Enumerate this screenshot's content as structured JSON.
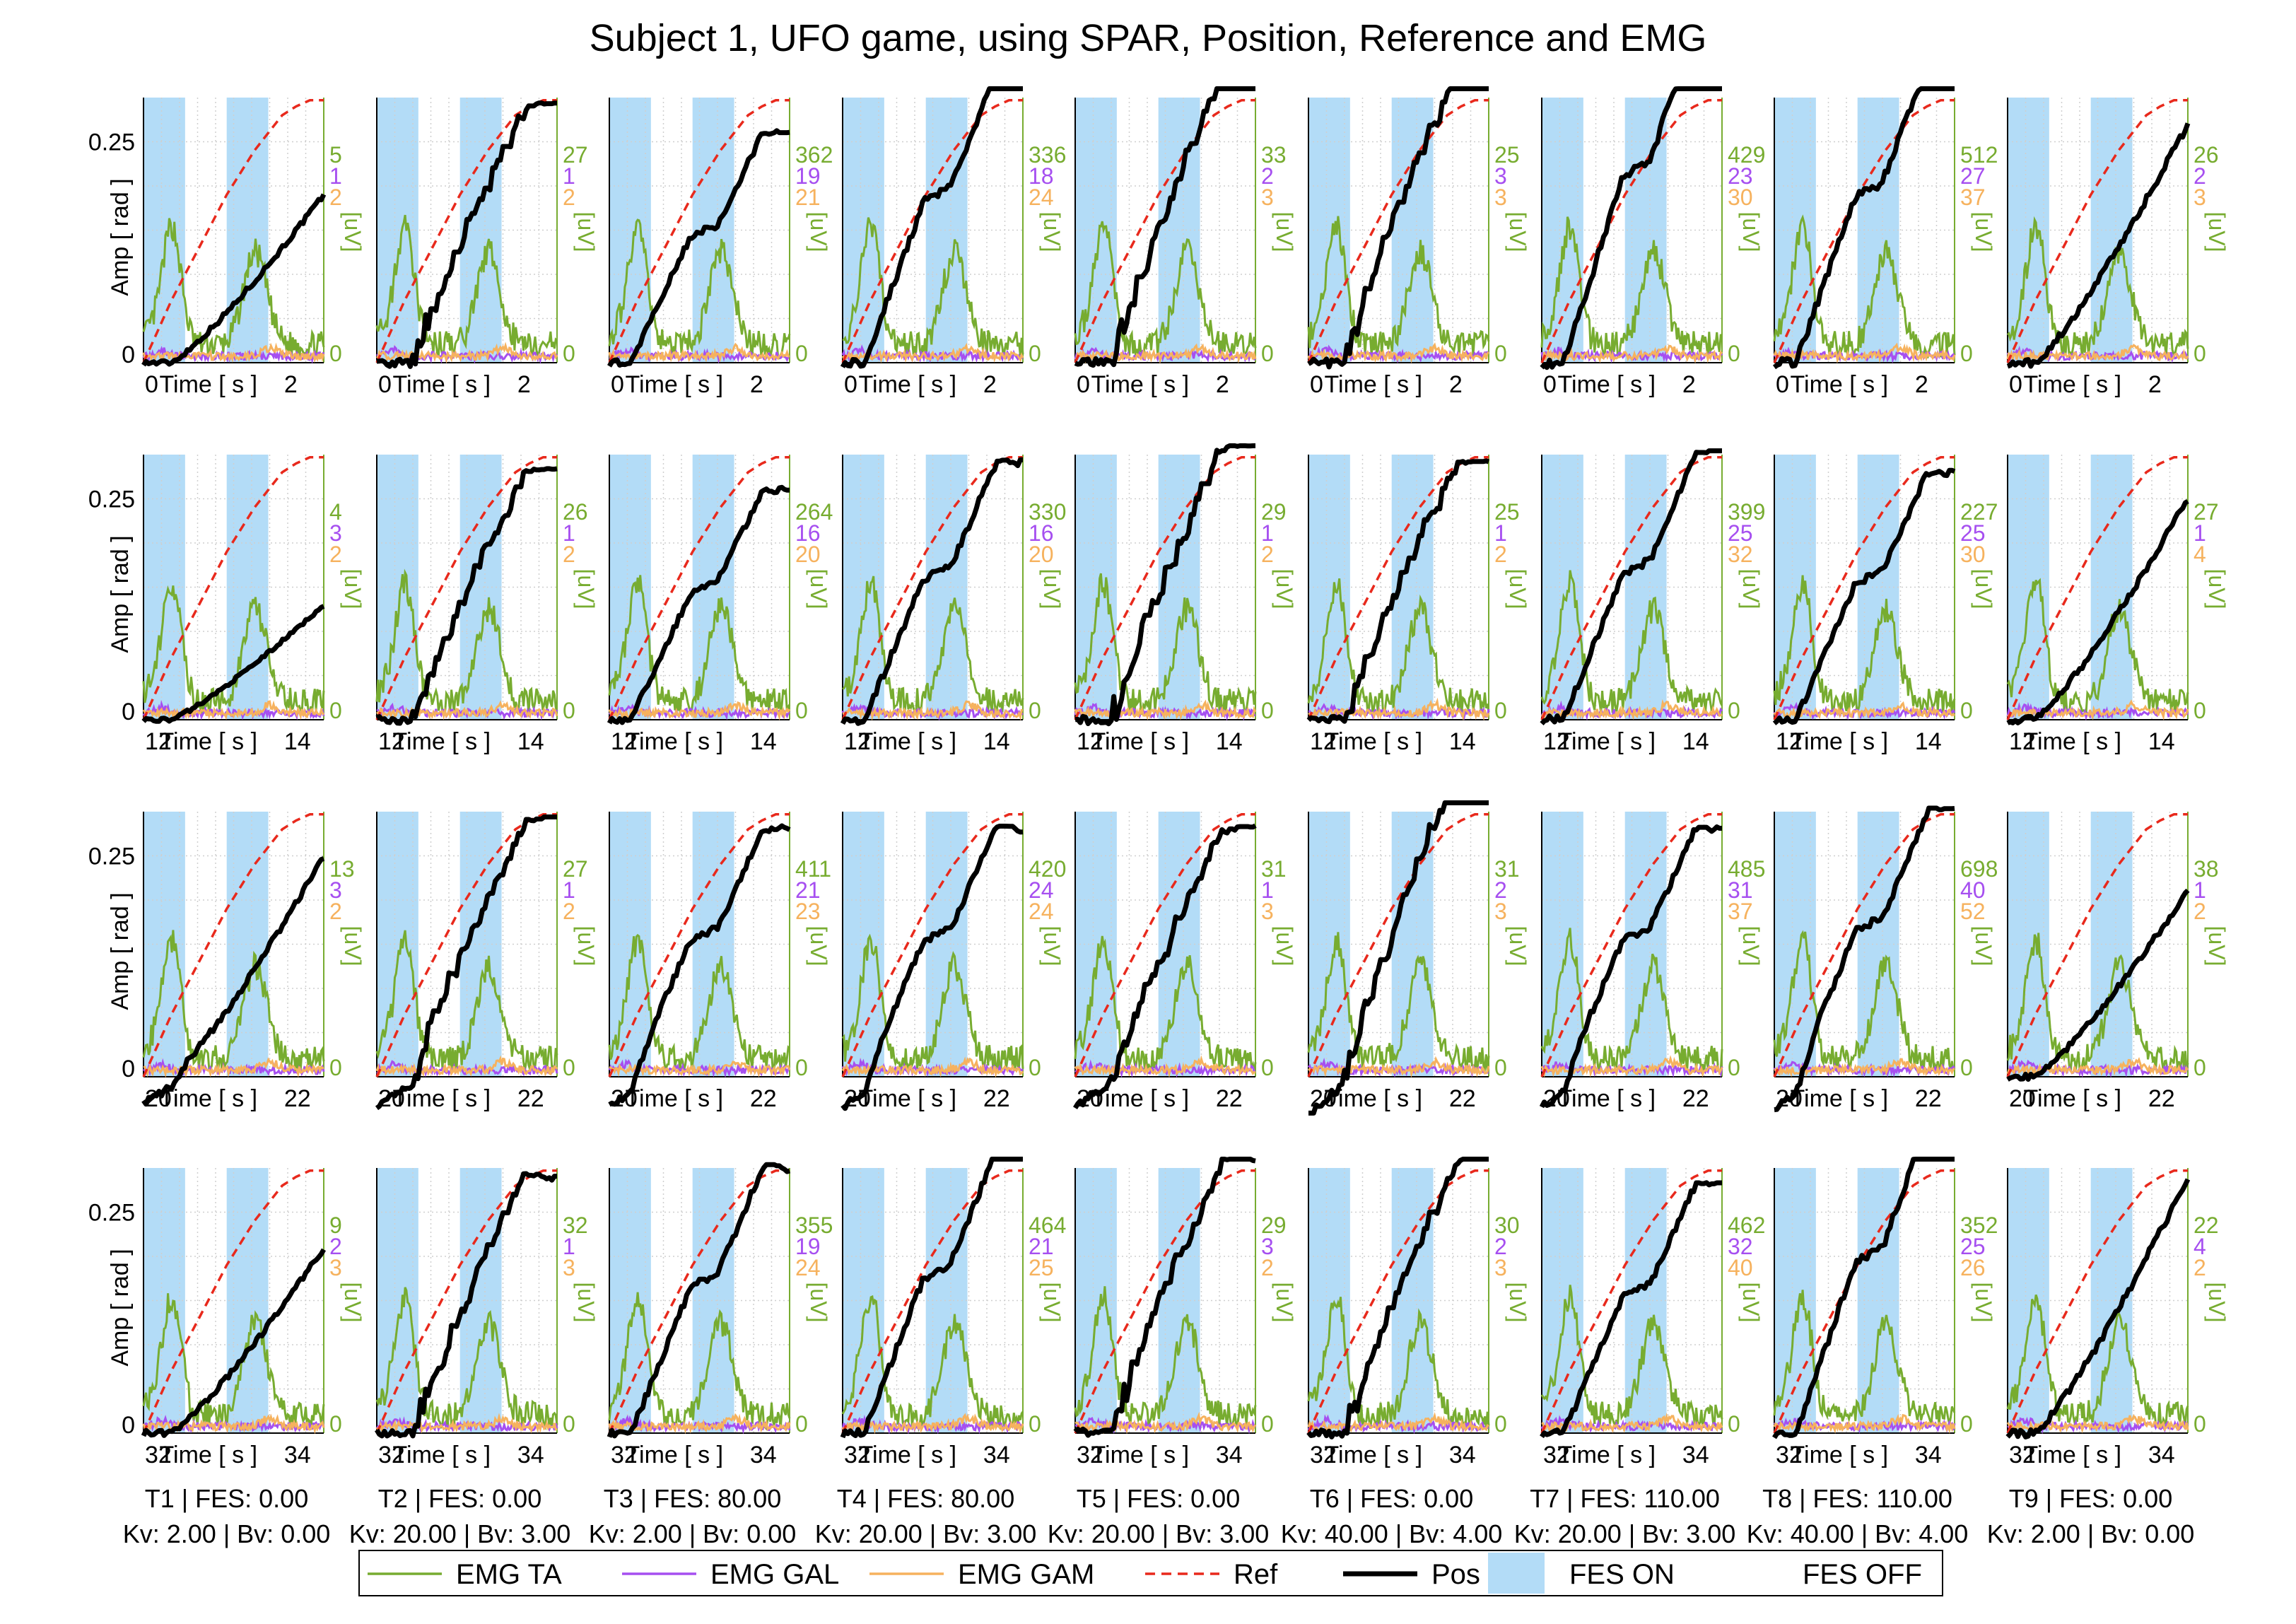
{
  "chart_data": {
    "type": "line",
    "title": "Subject 1, UFO game, using SPAR, Position, Reference and EMG",
    "layout": "4 rows x 9 columns of small multiples",
    "xlabel": "Time [ s ]",
    "ylabel_left": "Amp [ rad ]",
    "ylabel_right": "[uV]",
    "ylim": [
      0,
      0.3
    ],
    "ytick_left": "0.25",
    "ytick_left_zero": "0",
    "ytick_right_zero": "0",
    "grid": true,
    "row_xticks": [
      {
        "start": "0",
        "end": "2",
        "xlim": [
          0,
          2.6
        ]
      },
      {
        "start": "12",
        "end": "14",
        "xlim": [
          12,
          14.6
        ]
      },
      {
        "start": "20",
        "end": "22",
        "xlim": [
          20,
          22.6
        ]
      },
      {
        "start": "32",
        "end": "34",
        "xlim": [
          32,
          34.6
        ]
      }
    ],
    "fes_on_intervals": [
      [
        0,
        0.6
      ],
      [
        1.2,
        1.8
      ]
    ],
    "legend": {
      "position": "bottom",
      "entries": [
        "EMG TA",
        "EMG GAL",
        "EMG GAM",
        "Ref",
        "Pos",
        "FES ON",
        "FES OFF"
      ]
    },
    "colors": {
      "ta": "#77ac30",
      "gal": "#a64ff0",
      "gam": "#f6b25e",
      "ref": "#e8291c",
      "pos": "#000000",
      "fes_on": "#b3dcf7",
      "axis_right": "#77ac30"
    },
    "trials": [
      {
        "label": "T1",
        "fes_line": "T1 | FES: 0.00",
        "gain_line": "Kv: 2.00 | Bv: 0.00"
      },
      {
        "label": "T2",
        "fes_line": "T2 | FES: 0.00",
        "gain_line": "Kv: 20.00 | Bv: 3.00"
      },
      {
        "label": "T3",
        "fes_line": "T3 | FES: 80.00",
        "gain_line": "Kv: 2.00 | Bv: 0.00"
      },
      {
        "label": "T4",
        "fes_line": "T4 | FES: 80.00",
        "gain_line": "Kv: 20.00 | Bv: 3.00"
      },
      {
        "label": "T5",
        "fes_line": "T5 | FES: 0.00",
        "gain_line": "Kv: 20.00 | Bv: 3.00"
      },
      {
        "label": "T6",
        "fes_line": "T6 | FES: 0.00",
        "gain_line": "Kv: 40.00 | Bv: 4.00"
      },
      {
        "label": "T7",
        "fes_line": "T7 | FES: 110.00",
        "gain_line": "Kv: 20.00 | Bv: 3.00"
      },
      {
        "label": "T8",
        "fes_line": "T8 | FES: 110.00",
        "gain_line": "Kv: 40.00 | Bv: 4.00"
      },
      {
        "label": "T9",
        "fes_line": "T9 | FES: 0.00",
        "gain_line": "Kv: 2.00 | Bv: 0.00"
      }
    ],
    "emg_max_labels": [
      [
        [
          "5",
          "1",
          "2"
        ],
        [
          "27",
          "1",
          "2"
        ],
        [
          "362",
          "19",
          "21"
        ],
        [
          "336",
          "18",
          "24"
        ],
        [
          "33",
          "2",
          "3"
        ],
        [
          "25",
          "3",
          "3"
        ],
        [
          "429",
          "23",
          "30"
        ],
        [
          "512",
          "27",
          "37"
        ],
        [
          "26",
          "2",
          "3"
        ]
      ],
      [
        [
          "4",
          "3",
          "2"
        ],
        [
          "26",
          "1",
          "2"
        ],
        [
          "264",
          "16",
          "20"
        ],
        [
          "330",
          "16",
          "20"
        ],
        [
          "29",
          "1",
          "2"
        ],
        [
          "25",
          "1",
          "2"
        ],
        [
          "399",
          "25",
          "32"
        ],
        [
          "227",
          "25",
          "30"
        ],
        [
          "27",
          "1",
          "4"
        ]
      ],
      [
        [
          "13",
          "3",
          "2"
        ],
        [
          "27",
          "1",
          "2"
        ],
        [
          "411",
          "21",
          "23"
        ],
        [
          "420",
          "24",
          "24"
        ],
        [
          "31",
          "1",
          "3"
        ],
        [
          "31",
          "2",
          "3"
        ],
        [
          "485",
          "31",
          "37"
        ],
        [
          "698",
          "40",
          "52"
        ],
        [
          "38",
          "1",
          "2"
        ]
      ],
      [
        [
          "9",
          "2",
          "3"
        ],
        [
          "32",
          "1",
          "3"
        ],
        [
          "355",
          "19",
          "24"
        ],
        [
          "464",
          "21",
          "25"
        ],
        [
          "29",
          "3",
          "2"
        ],
        [
          "30",
          "2",
          "3"
        ],
        [
          "462",
          "32",
          "40"
        ],
        [
          "352",
          "25",
          "26"
        ],
        [
          "22",
          "4",
          "2"
        ]
      ]
    ],
    "ref_curve": {
      "x": [
        0,
        0.2,
        0.4,
        0.6,
        0.8,
        1.0,
        1.2,
        1.4,
        1.6,
        1.8,
        2.0,
        2.2,
        2.4,
        2.6
      ],
      "y": [
        0.0,
        0.035,
        0.07,
        0.1,
        0.13,
        0.16,
        0.19,
        0.215,
        0.24,
        0.26,
        0.28,
        0.29,
        0.297,
        0.297
      ],
      "note_row2_col1": "plateau 0.085 between 0.35 and 0.55 s"
    },
    "pos_final": [
      [
        0.19,
        0.29,
        0.26,
        0.33,
        0.33,
        0.33,
        0.38,
        0.34,
        0.27
      ],
      [
        0.13,
        0.28,
        0.26,
        0.29,
        0.31,
        0.29,
        0.3,
        0.28,
        0.25
      ],
      [
        0.25,
        0.29,
        0.28,
        0.28,
        0.28,
        0.35,
        0.28,
        0.3,
        0.21
      ],
      [
        0.21,
        0.29,
        0.3,
        0.32,
        0.31,
        0.31,
        0.28,
        0.35,
        0.29
      ]
    ]
  },
  "legend_labels": {
    "ta": "EMG TA",
    "gal": "EMG GAL",
    "gam": "EMG GAM",
    "ref": "Ref",
    "pos": "Pos",
    "fes_on": "FES ON",
    "fes_off": "FES OFF"
  }
}
